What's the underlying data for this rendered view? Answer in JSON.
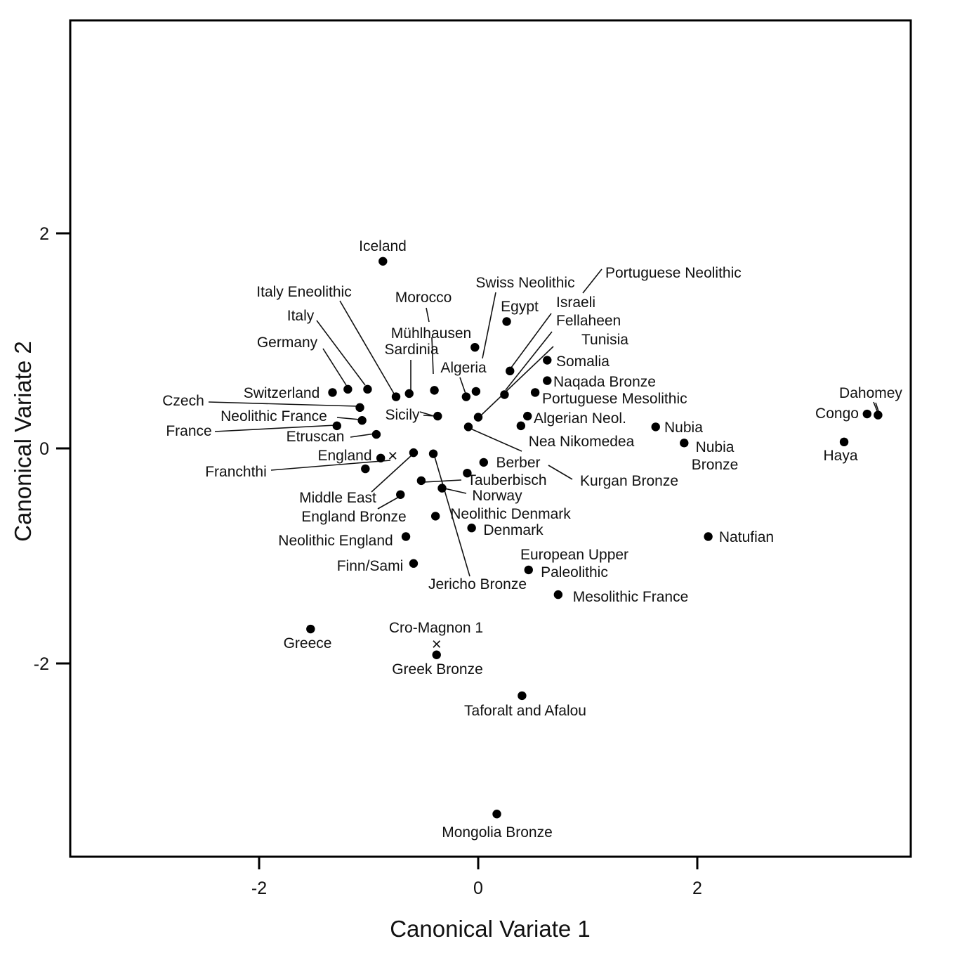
{
  "chart_data": {
    "type": "scatter",
    "title": "",
    "xlabel": "Canonical Variate 1",
    "ylabel": "Canonical Variate 2",
    "xlim": [
      -3.7,
      4.0
    ],
    "ylim": [
      -3.78,
      3.98
    ],
    "xticks": [
      "-2",
      "0",
      "2"
    ],
    "yticks": [
      "2",
      "0",
      "-2"
    ],
    "grid": false,
    "legend": "none",
    "points": [
      {
        "label": "Iceland",
        "x": -0.87,
        "y": 1.74,
        "marker": "dot"
      },
      {
        "label": "Egypt",
        "x": 0.26,
        "y": 1.18,
        "marker": "dot"
      },
      {
        "label": "Mühlhausen",
        "x": -0.03,
        "y": 0.94,
        "marker": "dot"
      },
      {
        "label": "Swiss Neolithic",
        "x": -0.02,
        "y": 0.53,
        "marker": "dot"
      },
      {
        "label": "Israeli",
        "x": 0.29,
        "y": 0.72,
        "marker": "dot"
      },
      {
        "label": "Somalia",
        "x": 0.63,
        "y": 0.82,
        "marker": "dot"
      },
      {
        "label": "Naqada Bronze",
        "x": 0.63,
        "y": 0.63,
        "marker": "dot"
      },
      {
        "label": "Fellaheen",
        "x": 0.24,
        "y": 0.5,
        "marker": "dot"
      },
      {
        "label": "Portuguese Mesolithic",
        "x": 0.52,
        "y": 0.52,
        "marker": "dot"
      },
      {
        "label": "Algeria",
        "x": -0.11,
        "y": 0.48,
        "marker": "dot"
      },
      {
        "label": "Morocco",
        "x": -0.4,
        "y": 0.54,
        "marker": "dot"
      },
      {
        "label": "Sardinia",
        "x": -0.63,
        "y": 0.51,
        "marker": "dot"
      },
      {
        "label": "Italy Eneolithic",
        "x": -0.75,
        "y": 0.48,
        "marker": "dot"
      },
      {
        "label": "Italy",
        "x": -1.01,
        "y": 0.55,
        "marker": "dot"
      },
      {
        "label": "Germany",
        "x": -1.19,
        "y": 0.55,
        "marker": "dot"
      },
      {
        "label": "Switzerland",
        "x": -1.33,
        "y": 0.52,
        "marker": "dot"
      },
      {
        "label": "Czech",
        "x": -1.08,
        "y": 0.38,
        "marker": "dot"
      },
      {
        "label": "Neolithic France",
        "x": -1.06,
        "y": 0.26,
        "marker": "dot"
      },
      {
        "label": "France",
        "x": -1.29,
        "y": 0.21,
        "marker": "dot"
      },
      {
        "label": "Etruscan",
        "x": -0.93,
        "y": 0.13,
        "marker": "dot"
      },
      {
        "label": "Sicily",
        "x": -0.37,
        "y": 0.3,
        "marker": "dot"
      },
      {
        "label": "Tunisia",
        "x": 0.0,
        "y": 0.29,
        "marker": "dot"
      },
      {
        "label": "Portuguese Neolithic",
        "x": -0.09,
        "y": 0.2,
        "marker": "dot"
      },
      {
        "label": "Algerian Neol.",
        "x": 0.45,
        "y": 0.3,
        "marker": "dot"
      },
      {
        "label": "Nea Nikomedea",
        "x": 0.39,
        "y": 0.21,
        "marker": "dot"
      },
      {
        "label": "Nubia",
        "x": 1.62,
        "y": 0.2,
        "marker": "dot"
      },
      {
        "label": "Nubia Bronze",
        "x": 1.88,
        "y": 0.05,
        "marker": "dot"
      },
      {
        "label": "Dahomey",
        "x": 3.65,
        "y": 0.31,
        "marker": "dot"
      },
      {
        "label": "Congo",
        "x": 3.55,
        "y": 0.32,
        "marker": "dot"
      },
      {
        "label": "Haya",
        "x": 3.34,
        "y": 0.06,
        "marker": "dot"
      },
      {
        "label": "England",
        "x": -0.89,
        "y": -0.09,
        "marker": "dot"
      },
      {
        "label": "Franchthi",
        "x": -1.03,
        "y": -0.19,
        "marker": "dot"
      },
      {
        "label": "Middle East",
        "x": -0.59,
        "y": -0.04,
        "marker": "dot"
      },
      {
        "label": "Jericho Bronze",
        "x": -0.41,
        "y": -0.05,
        "marker": "dot"
      },
      {
        "label": "Tauberbisch",
        "x": -0.52,
        "y": -0.3,
        "marker": "dot"
      },
      {
        "label": "Norway",
        "x": -0.33,
        "y": -0.37,
        "marker": "dot"
      },
      {
        "label": "Berber",
        "x": 0.05,
        "y": -0.13,
        "marker": "dot"
      },
      {
        "label": "Kurgan Bronze",
        "x": -0.1,
        "y": -0.23,
        "marker": "dot"
      },
      {
        "label": "England Bronze",
        "x": -0.71,
        "y": -0.43,
        "marker": "dot"
      },
      {
        "label": "Neolithic Denmark",
        "x": -0.39,
        "y": -0.63,
        "marker": "dot"
      },
      {
        "label": "Denmark",
        "x": -0.06,
        "y": -0.74,
        "marker": "dot"
      },
      {
        "label": "Neolithic England",
        "x": -0.66,
        "y": -0.82,
        "marker": "dot"
      },
      {
        "label": "Finn/Sami",
        "x": -0.59,
        "y": -1.07,
        "marker": "dot"
      },
      {
        "label": "European Upper Paleolithic",
        "x": 0.46,
        "y": -1.13,
        "marker": "dot"
      },
      {
        "label": "Mesolithic France",
        "x": 0.73,
        "y": -1.36,
        "marker": "dot"
      },
      {
        "label": "Natufian",
        "x": 2.1,
        "y": -0.82,
        "marker": "dot"
      },
      {
        "label": "Greece",
        "x": -1.53,
        "y": -1.68,
        "marker": "dot"
      },
      {
        "label": "Greek Bronze",
        "x": -0.38,
        "y": -1.92,
        "marker": "dot"
      },
      {
        "label": "Taforalt and Afalou",
        "x": 0.4,
        "y": -2.3,
        "marker": "dot"
      },
      {
        "label": "Mongolia Bronze",
        "x": 0.17,
        "y": -3.4,
        "marker": "dot"
      },
      {
        "label": "England",
        "x": -0.78,
        "y": -0.07,
        "marker": "X"
      },
      {
        "label": "Cro-Magnon 1",
        "x": -0.38,
        "y": -1.82,
        "marker": "X"
      }
    ]
  }
}
